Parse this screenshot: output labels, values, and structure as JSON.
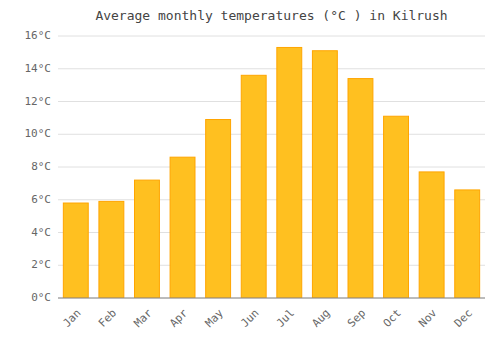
{
  "chart_data": {
    "type": "bar",
    "title": "Average monthly temperatures (°C ) in Kilrush",
    "categories": [
      "Jan",
      "Feb",
      "Mar",
      "Apr",
      "May",
      "Jun",
      "Jul",
      "Aug",
      "Sep",
      "Oct",
      "Nov",
      "Dec"
    ],
    "values": [
      5.8,
      5.9,
      7.2,
      8.6,
      10.9,
      13.6,
      15.3,
      15.1,
      13.4,
      11.1,
      7.7,
      6.6
    ],
    "color": "#FFC020",
    "ylim": [
      0,
      16
    ],
    "yticks": [
      {
        "value": 0,
        "label": "0°C"
      },
      {
        "value": 2,
        "label": "2°C"
      },
      {
        "value": 4,
        "label": "4°C"
      },
      {
        "value": 6,
        "label": "6°C"
      },
      {
        "value": 8,
        "label": "8°C"
      },
      {
        "value": 10,
        "label": "10°C"
      },
      {
        "value": 12,
        "label": "12°C"
      },
      {
        "value": 14,
        "label": "14°C"
      },
      {
        "value": 16,
        "label": "16°C"
      }
    ],
    "grid": true
  }
}
